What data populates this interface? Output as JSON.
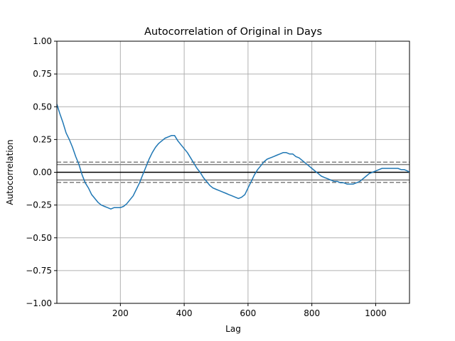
{
  "chart_data": {
    "type": "line",
    "title": "Autocorrelation of Original in Days",
    "xlabel": "Lag",
    "ylabel": "Autocorrelation",
    "xlim": [
      1,
      1106
    ],
    "ylim": [
      -1.0,
      1.0
    ],
    "xticks": [
      200,
      400,
      600,
      800,
      1000
    ],
    "xtick_labels": [
      "200",
      "400",
      "600",
      "800",
      "1000"
    ],
    "yticks": [
      -1.0,
      -0.75,
      -0.5,
      -0.25,
      0.0,
      0.25,
      0.5,
      0.75,
      1.0
    ],
    "ytick_labels": [
      "−1.00",
      "−0.75",
      "−0.50",
      "−0.25",
      "0.00",
      "0.25",
      "0.50",
      "0.75",
      "1.00"
    ],
    "grid": true,
    "zero_line": 0.0,
    "confidence_bands": {
      "inner": [
        0.0589,
        -0.0589
      ],
      "outer": [
        0.0774,
        -0.0774
      ]
    },
    "colors": {
      "series": "#1f77b4",
      "zero_line": "#000000",
      "bands": "#808080",
      "grid": "#b0b0b0"
    },
    "series": [
      {
        "x": [
          1,
          10,
          20,
          30,
          40,
          50,
          60,
          70,
          80,
          90,
          100,
          110,
          120,
          130,
          140,
          150,
          160,
          170,
          180,
          190,
          200,
          210,
          220,
          230,
          240,
          250,
          260,
          270,
          280,
          290,
          300,
          310,
          320,
          330,
          340,
          350,
          360,
          370,
          380,
          390,
          400,
          410,
          420,
          430,
          440,
          450,
          460,
          470,
          480,
          490,
          500,
          510,
          520,
          530,
          540,
          550,
          560,
          570,
          580,
          590,
          600,
          610,
          620,
          630,
          640,
          650,
          660,
          670,
          680,
          690,
          700,
          710,
          720,
          730,
          740,
          750,
          760,
          770,
          780,
          790,
          800,
          810,
          820,
          830,
          840,
          850,
          860,
          870,
          880,
          890,
          900,
          910,
          920,
          930,
          940,
          950,
          960,
          970,
          980,
          990,
          1000,
          1010,
          1020,
          1030,
          1040,
          1050,
          1060,
          1070,
          1080,
          1090,
          1100,
          1106
        ],
        "y": [
          0.52,
          0.45,
          0.38,
          0.3,
          0.25,
          0.19,
          0.12,
          0.06,
          -0.02,
          -0.08,
          -0.12,
          -0.17,
          -0.2,
          -0.23,
          -0.25,
          -0.26,
          -0.27,
          -0.28,
          -0.27,
          -0.27,
          -0.27,
          -0.26,
          -0.24,
          -0.21,
          -0.18,
          -0.13,
          -0.08,
          -0.02,
          0.04,
          0.1,
          0.15,
          0.19,
          0.22,
          0.24,
          0.26,
          0.27,
          0.28,
          0.28,
          0.24,
          0.21,
          0.18,
          0.15,
          0.11,
          0.07,
          0.03,
          0.0,
          -0.04,
          -0.07,
          -0.1,
          -0.12,
          -0.13,
          -0.14,
          -0.15,
          -0.16,
          -0.17,
          -0.18,
          -0.19,
          -0.2,
          -0.19,
          -0.17,
          -0.12,
          -0.07,
          -0.02,
          0.02,
          0.05,
          0.08,
          0.1,
          0.11,
          0.12,
          0.13,
          0.14,
          0.15,
          0.15,
          0.14,
          0.14,
          0.12,
          0.11,
          0.09,
          0.07,
          0.05,
          0.03,
          0.01,
          -0.01,
          -0.03,
          -0.04,
          -0.05,
          -0.06,
          -0.07,
          -0.07,
          -0.08,
          -0.08,
          -0.09,
          -0.09,
          -0.09,
          -0.08,
          -0.07,
          -0.05,
          -0.03,
          -0.01,
          0.0,
          0.01,
          0.02,
          0.03,
          0.03,
          0.03,
          0.03,
          0.03,
          0.03,
          0.02,
          0.02,
          0.01,
          0.0
        ]
      }
    ]
  }
}
